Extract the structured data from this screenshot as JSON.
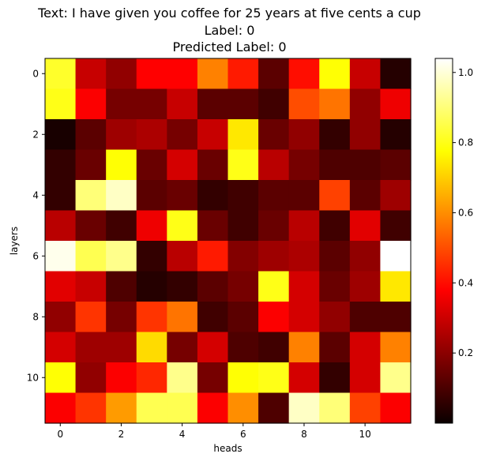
{
  "chart_data": {
    "type": "heatmap",
    "title_lines": [
      "Text: I have given you coffee for 25 years at five cents a cup",
      "Label: 0",
      "Predicted Label: 0"
    ],
    "xlabel": "heads",
    "ylabel": "layers",
    "colormap": "hot",
    "vmin": 0.0,
    "vmax": 1.04,
    "x_ticks": [
      0,
      2,
      4,
      6,
      8,
      10
    ],
    "y_ticks": [
      0,
      2,
      4,
      6,
      8,
      10
    ],
    "colorbar_ticks": [
      "0.2",
      "0.4",
      "0.6",
      "0.8",
      "1.0"
    ],
    "colorbar_tick_values": [
      0.2,
      0.4,
      0.6,
      0.8,
      1.0
    ],
    "values": [
      [
        0.82,
        0.28,
        0.2,
        0.38,
        0.38,
        0.58,
        0.42,
        0.12,
        0.4,
        0.78,
        0.28,
        0.04
      ],
      [
        0.8,
        0.36,
        0.16,
        0.16,
        0.28,
        0.12,
        0.12,
        0.08,
        0.5,
        0.56,
        0.2,
        0.34
      ],
      [
        0.02,
        0.12,
        0.22,
        0.24,
        0.16,
        0.28,
        0.74,
        0.14,
        0.2,
        0.06,
        0.2,
        0.04
      ],
      [
        0.06,
        0.14,
        0.78,
        0.14,
        0.3,
        0.14,
        0.8,
        0.26,
        0.16,
        0.1,
        0.1,
        0.12
      ],
      [
        0.06,
        0.9,
        0.98,
        0.12,
        0.14,
        0.06,
        0.08,
        0.12,
        0.12,
        0.48,
        0.12,
        0.22
      ],
      [
        0.26,
        0.14,
        0.08,
        0.34,
        0.8,
        0.14,
        0.08,
        0.14,
        0.26,
        0.08,
        0.32,
        0.08
      ],
      [
        1.02,
        0.86,
        0.92,
        0.06,
        0.26,
        0.42,
        0.18,
        0.22,
        0.24,
        0.12,
        0.2,
        1.04
      ],
      [
        0.32,
        0.28,
        0.1,
        0.04,
        0.06,
        0.12,
        0.16,
        0.8,
        0.3,
        0.14,
        0.22,
        0.74
      ],
      [
        0.2,
        0.46,
        0.16,
        0.46,
        0.56,
        0.08,
        0.12,
        0.36,
        0.3,
        0.2,
        0.1,
        0.1
      ],
      [
        0.3,
        0.22,
        0.22,
        0.72,
        0.16,
        0.3,
        0.1,
        0.08,
        0.58,
        0.12,
        0.3,
        0.58
      ],
      [
        0.78,
        0.2,
        0.36,
        0.44,
        0.92,
        0.16,
        0.78,
        0.8,
        0.3,
        0.06,
        0.3,
        0.92
      ],
      [
        0.36,
        0.46,
        0.62,
        0.86,
        0.86,
        0.36,
        0.6,
        0.1,
        0.98,
        0.9,
        0.48,
        0.36
      ]
    ]
  }
}
